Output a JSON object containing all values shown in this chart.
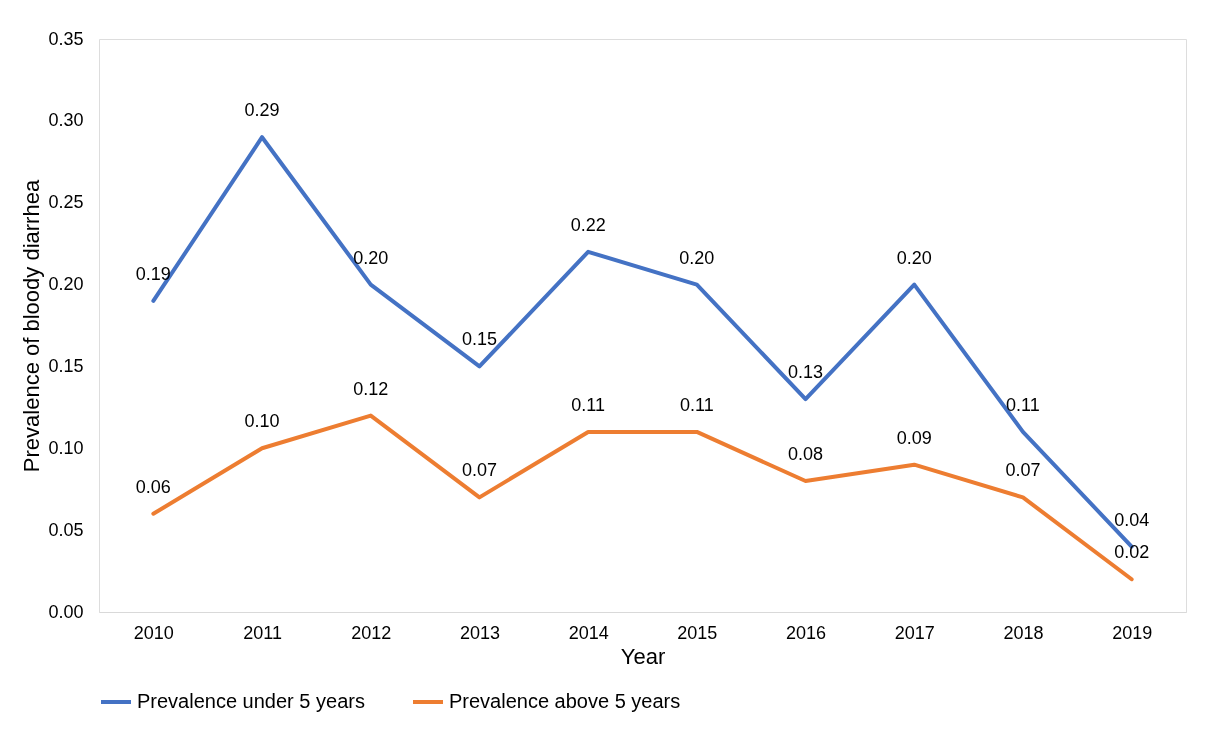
{
  "chart_data": {
    "type": "line",
    "xlabel": "Year",
    "ylabel": "Prevalence of bloody diarrhea",
    "categories": [
      "2010",
      "2011",
      "2012",
      "2013",
      "2014",
      "2015",
      "2016",
      "2017",
      "2018",
      "2019"
    ],
    "series": [
      {
        "name": "Prevalence under 5 years",
        "color": "#4472c4",
        "values": [
          0.19,
          0.29,
          0.2,
          0.15,
          0.22,
          0.2,
          0.13,
          0.2,
          0.11,
          0.04
        ],
        "value_labels": [
          "0.19",
          "0.29",
          "0.20",
          "0.15",
          "0.22",
          "0.20",
          "0.13",
          "0.20",
          "0.11",
          "0.04"
        ]
      },
      {
        "name": "Prevalence above 5 years",
        "color": "#ed7d31",
        "values": [
          0.06,
          0.1,
          0.12,
          0.07,
          0.11,
          0.11,
          0.08,
          0.09,
          0.07,
          0.02
        ],
        "value_labels": [
          "0.06",
          "0.10",
          "0.12",
          "0.07",
          "0.11",
          "0.11",
          "0.08",
          "0.09",
          "0.07",
          "0.02"
        ]
      }
    ],
    "ylim": [
      0,
      0.35
    ],
    "yticks": [
      {
        "value": 0,
        "label": "0.00"
      },
      {
        "value": 0.05,
        "label": "0.05"
      },
      {
        "value": 0.1,
        "label": "0.10"
      },
      {
        "value": 0.15,
        "label": "0.15"
      },
      {
        "value": 0.2,
        "label": "0.20"
      },
      {
        "value": 0.25,
        "label": "0.25"
      },
      {
        "value": 0.3,
        "label": "0.30"
      },
      {
        "value": 0.35,
        "label": "0.35"
      }
    ],
    "grid": false,
    "legend": "bottom",
    "marker": "none",
    "line_style": "solid"
  }
}
